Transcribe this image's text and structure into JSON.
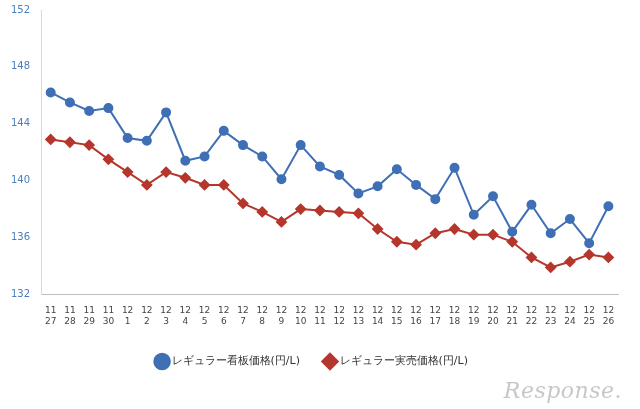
{
  "chart_data": {
    "type": "line",
    "categories": [
      "11\n27",
      "11\n28",
      "11\n29",
      "11\n30",
      "12\n1",
      "12\n2",
      "12\n3",
      "12\n4",
      "12\n5",
      "12\n6",
      "12\n7",
      "12\n8",
      "12\n9",
      "12\n10",
      "12\n11",
      "12\n12",
      "12\n13",
      "12\n14",
      "12\n15",
      "12\n16",
      "12\n17",
      "12\n18",
      "12\n19",
      "12\n20",
      "12\n21",
      "12\n22",
      "12\n23",
      "12\n24",
      "12\n25",
      "12\n26"
    ],
    "series": [
      {
        "name": "レギュラー看板価格(円/L)",
        "color": "#3f6fb4",
        "marker": "circle",
        "line_style": "solid",
        "values": [
          146.2,
          145.5,
          144.9,
          145.1,
          143.0,
          142.8,
          144.8,
          141.4,
          141.7,
          143.5,
          142.5,
          141.7,
          140.1,
          142.5,
          141.0,
          140.4,
          139.1,
          139.6,
          140.8,
          139.7,
          138.7,
          140.9,
          137.6,
          138.9,
          136.4,
          138.3,
          136.3,
          137.3,
          135.6,
          138.2
        ]
      },
      {
        "name": "レギュラー実売価格(円/L)",
        "color": "#b5362c",
        "marker": "diamond",
        "line_style": "solid",
        "values": [
          142.9,
          142.7,
          142.5,
          141.5,
          140.6,
          139.7,
          140.6,
          140.2,
          139.7,
          139.7,
          138.4,
          137.8,
          137.1,
          138.0,
          137.9,
          137.8,
          137.7,
          136.6,
          135.7,
          135.5,
          136.3,
          136.6,
          136.2,
          136.2,
          135.7,
          134.6,
          133.9,
          134.3,
          134.8,
          134.6
        ]
      }
    ],
    "ylim": [
      132,
      152
    ],
    "yticks": [
      132,
      136,
      140,
      144,
      148,
      152
    ],
    "grid": false,
    "legend": "bottom",
    "annotations": [
      "Response."
    ]
  }
}
